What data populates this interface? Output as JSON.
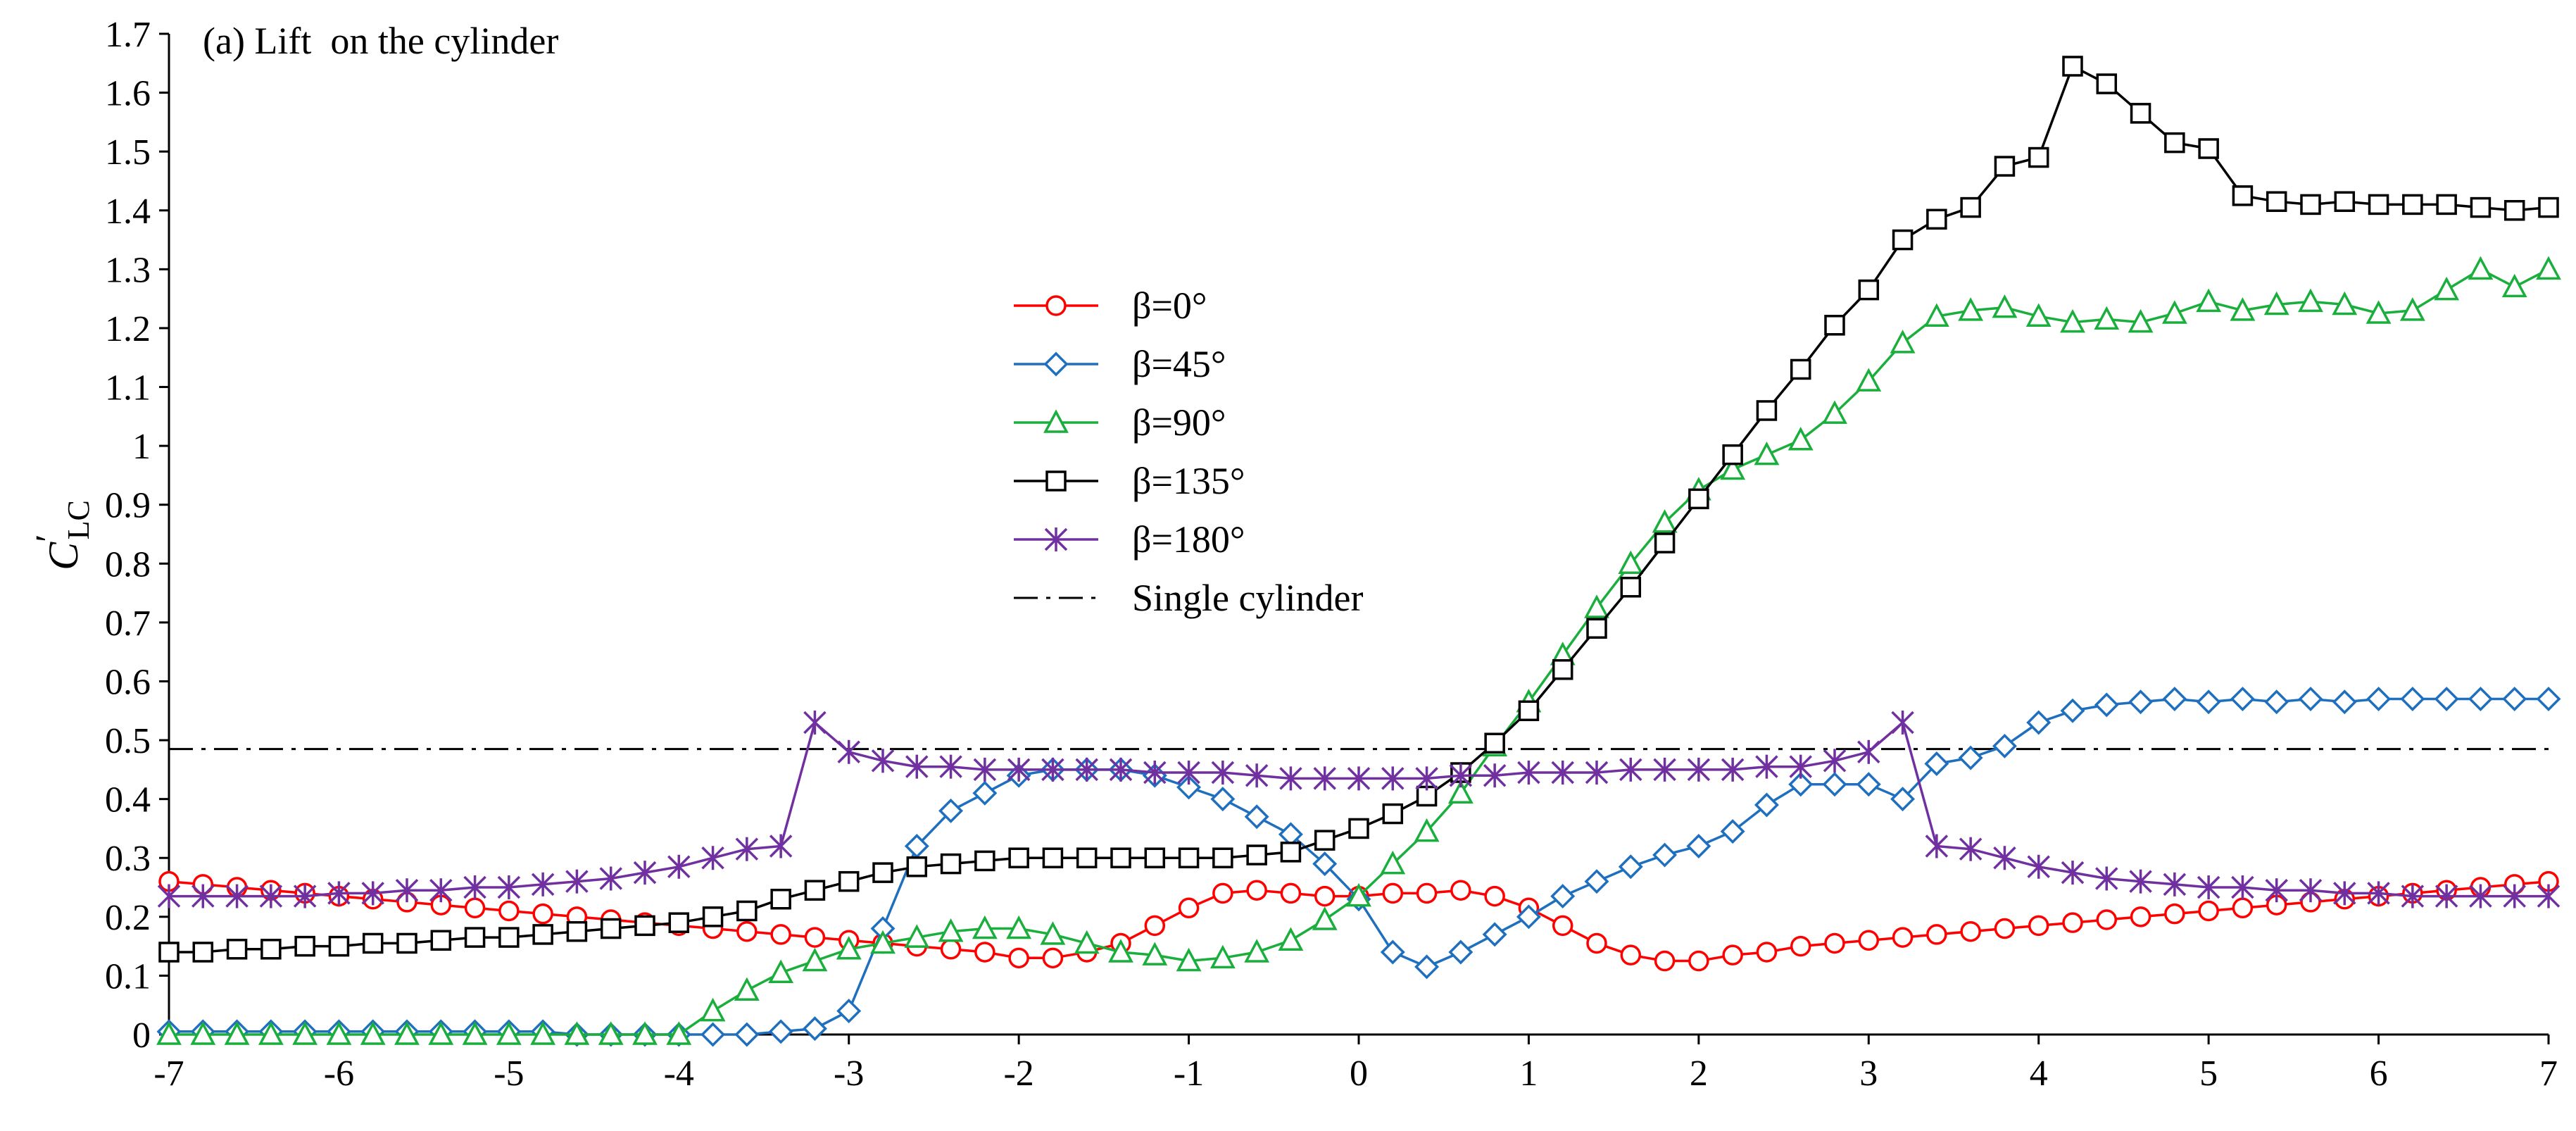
{
  "chart_data": {
    "type": "line",
    "title": "(a) Lift  on the cylinder",
    "xlabel": "",
    "ylabel_main": "C",
    "ylabel_sub": "LC",
    "ylabel_prime": "′",
    "xlim": [
      -7,
      7
    ],
    "ylim": [
      0,
      1.7
    ],
    "x_ticks": [
      "-7",
      "-6",
      "-5",
      "-4",
      "-3",
      "-2",
      "-1",
      "0",
      "1",
      "2",
      "3",
      "4",
      "5",
      "6",
      "7"
    ],
    "y_ticks": [
      "0",
      "0.1",
      "0.2",
      "0.3",
      "0.4",
      "0.5",
      "0.6",
      "0.7",
      "0.8",
      "0.9",
      "1",
      "1.1",
      "1.2",
      "1.3",
      "1.4",
      "1.5",
      "1.6",
      "1.7"
    ],
    "grid": false,
    "legend_position": "center",
    "x": [
      -7.0,
      -6.8,
      -6.6,
      -6.4,
      -6.2,
      -6.0,
      -5.8,
      -5.6,
      -5.4,
      -5.2,
      -5.0,
      -4.8,
      -4.6,
      -4.4,
      -4.2,
      -4.0,
      -3.8,
      -3.6,
      -3.4,
      -3.2,
      -3.0,
      -2.8,
      -2.6,
      -2.4,
      -2.2,
      -2.0,
      -1.8,
      -1.6,
      -1.4,
      -1.2,
      -1.0,
      -0.8,
      -0.6,
      -0.4,
      -0.2,
      0.0,
      0.2,
      0.4,
      0.6,
      0.8,
      1.0,
      1.2,
      1.4,
      1.6,
      1.8,
      2.0,
      2.2,
      2.4,
      2.6,
      2.8,
      3.0,
      3.2,
      3.4,
      3.6,
      3.8,
      4.0,
      4.2,
      4.4,
      4.6,
      4.8,
      5.0,
      5.2,
      5.4,
      5.6,
      5.8,
      6.0,
      6.2,
      6.4,
      6.6,
      6.8,
      7.0
    ],
    "series": [
      {
        "name": "β=0°",
        "color": "#ff0000",
        "marker": "circle",
        "values": [
          0.26,
          0.255,
          0.25,
          0.245,
          0.24,
          0.235,
          0.23,
          0.225,
          0.22,
          0.215,
          0.21,
          0.205,
          0.2,
          0.195,
          0.19,
          0.185,
          0.18,
          0.175,
          0.17,
          0.165,
          0.16,
          0.155,
          0.15,
          0.145,
          0.14,
          0.13,
          0.13,
          0.14,
          0.155,
          0.185,
          0.215,
          0.24,
          0.245,
          0.24,
          0.235,
          0.235,
          0.24,
          0.24,
          0.245,
          0.235,
          0.215,
          0.185,
          0.155,
          0.135,
          0.125,
          0.125,
          0.135,
          0.14,
          0.15,
          0.155,
          0.16,
          0.165,
          0.17,
          0.175,
          0.18,
          0.185,
          0.19,
          0.195,
          0.2,
          0.205,
          0.21,
          0.215,
          0.22,
          0.225,
          0.23,
          0.235,
          0.24,
          0.245,
          0.25,
          0.255,
          0.26
        ]
      },
      {
        "name": "β=45°",
        "color": "#1f6fbf",
        "marker": "diamond",
        "values": [
          0.005,
          0.005,
          0.005,
          0.005,
          0.005,
          0.005,
          0.005,
          0.005,
          0.005,
          0.005,
          0.005,
          0.005,
          0.0,
          0.0,
          0.0,
          0.0,
          0.0,
          0.0,
          0.005,
          0.01,
          0.04,
          0.18,
          0.32,
          0.38,
          0.41,
          0.44,
          0.45,
          0.45,
          0.45,
          0.44,
          0.42,
          0.4,
          0.37,
          0.34,
          0.29,
          0.23,
          0.14,
          0.115,
          0.14,
          0.17,
          0.2,
          0.235,
          0.26,
          0.285,
          0.305,
          0.32,
          0.345,
          0.39,
          0.425,
          0.425,
          0.425,
          0.4,
          0.46,
          0.47,
          0.49,
          0.53,
          0.55,
          0.56,
          0.565,
          0.57,
          0.565,
          0.57,
          0.565,
          0.57,
          0.565,
          0.57,
          0.57,
          0.57,
          0.57,
          0.57,
          0.57
        ]
      },
      {
        "name": "β=90°",
        "color": "#1aae3c",
        "marker": "triangle",
        "values": [
          0.0,
          0.0,
          0.0,
          0.0,
          0.0,
          0.0,
          0.0,
          0.0,
          0.0,
          0.0,
          0.0,
          0.0,
          0.0,
          0.0,
          0.0,
          0.0,
          0.04,
          0.075,
          0.105,
          0.125,
          0.145,
          0.155,
          0.165,
          0.175,
          0.18,
          0.18,
          0.17,
          0.155,
          0.14,
          0.135,
          0.125,
          0.13,
          0.14,
          0.16,
          0.195,
          0.235,
          0.29,
          0.345,
          0.41,
          0.49,
          0.565,
          0.645,
          0.725,
          0.8,
          0.87,
          0.925,
          0.96,
          0.985,
          1.01,
          1.055,
          1.11,
          1.175,
          1.22,
          1.23,
          1.235,
          1.22,
          1.21,
          1.215,
          1.21,
          1.225,
          1.245,
          1.23,
          1.24,
          1.245,
          1.24,
          1.225,
          1.23,
          1.265,
          1.3,
          1.27,
          1.3
        ]
      },
      {
        "name": "β=135°",
        "color": "#000000",
        "marker": "square",
        "values": [
          0.14,
          0.14,
          0.145,
          0.145,
          0.15,
          0.15,
          0.155,
          0.155,
          0.16,
          0.165,
          0.165,
          0.17,
          0.175,
          0.18,
          0.185,
          0.19,
          0.2,
          0.21,
          0.23,
          0.245,
          0.26,
          0.275,
          0.285,
          0.29,
          0.295,
          0.3,
          0.3,
          0.3,
          0.3,
          0.3,
          0.3,
          0.3,
          0.305,
          0.31,
          0.33,
          0.35,
          0.375,
          0.405,
          0.445,
          0.495,
          0.55,
          0.62,
          0.69,
          0.76,
          0.835,
          0.91,
          0.985,
          1.06,
          1.13,
          1.205,
          1.265,
          1.35,
          1.385,
          1.405,
          1.475,
          1.49,
          1.645,
          1.615,
          1.565,
          1.515,
          1.505,
          1.425,
          1.415,
          1.41,
          1.415,
          1.41,
          1.41,
          1.41,
          1.405,
          1.4,
          1.405
        ]
      },
      {
        "name": "β=180°",
        "color": "#7030a0",
        "marker": "star",
        "values": [
          0.235,
          0.235,
          0.235,
          0.235,
          0.235,
          0.24,
          0.24,
          0.245,
          0.245,
          0.25,
          0.25,
          0.255,
          0.26,
          0.265,
          0.275,
          0.285,
          0.3,
          0.315,
          0.32,
          0.53,
          0.48,
          0.465,
          0.455,
          0.455,
          0.45,
          0.45,
          0.45,
          0.45,
          0.45,
          0.445,
          0.445,
          0.445,
          0.44,
          0.435,
          0.435,
          0.435,
          0.435,
          0.435,
          0.44,
          0.44,
          0.445,
          0.445,
          0.445,
          0.45,
          0.45,
          0.45,
          0.45,
          0.455,
          0.455,
          0.465,
          0.48,
          0.53,
          0.32,
          0.315,
          0.3,
          0.285,
          0.275,
          0.265,
          0.26,
          0.255,
          0.25,
          0.25,
          0.245,
          0.245,
          0.24,
          0.24,
          0.235,
          0.235,
          0.235,
          0.235,
          0.235
        ]
      }
    ],
    "reference_line": {
      "name": "Single cylinder",
      "color": "#000000",
      "value": 0.485,
      "style": "dash-dot"
    }
  }
}
